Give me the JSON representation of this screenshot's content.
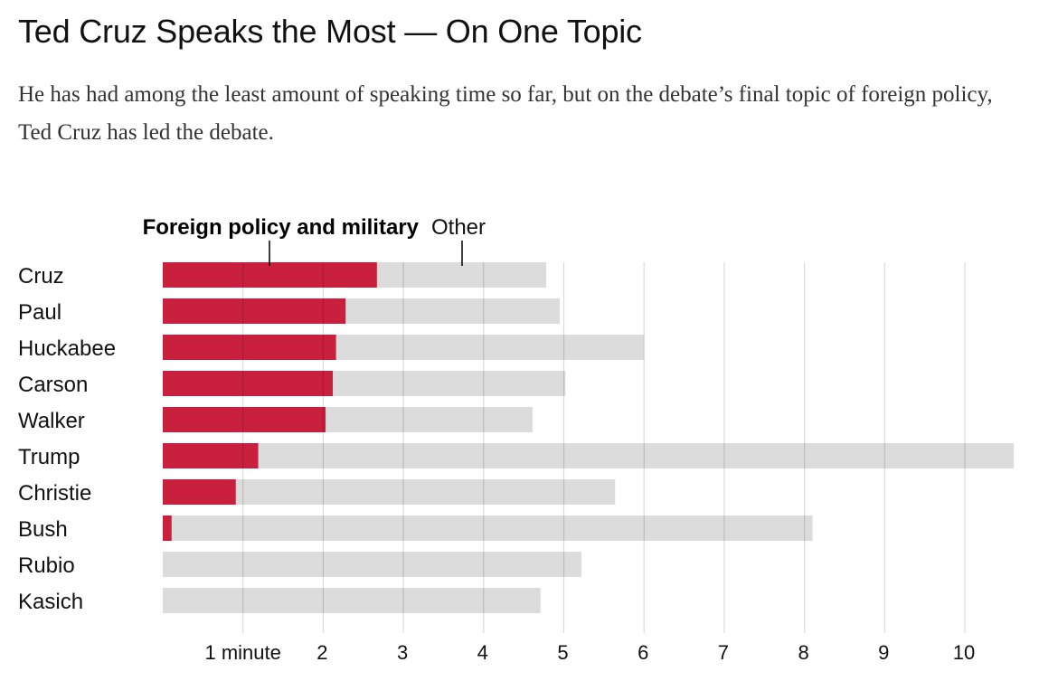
{
  "title": "Ted Cruz Speaks the Most — On One Topic",
  "subtitle": "He has had among the least amount of speaking time so far, but on the debate’s final topic of foreign policy, Ted Cruz has led the debate.",
  "colors": {
    "foreign": "#c8203d",
    "other": "#dcdcdc",
    "grid": "#c8c8c8"
  },
  "chart_data": {
    "type": "bar",
    "orientation": "horizontal",
    "stacked": true,
    "title": "Ted Cruz Speaks the Most — On One Topic",
    "categories": [
      "Cruz",
      "Paul",
      "Huckabee",
      "Carson",
      "Walker",
      "Trump",
      "Christie",
      "Bush",
      "Rubio",
      "Kasich"
    ],
    "series": [
      {
        "name": "Foreign policy and military",
        "color": "#c8203d",
        "values": [
          2.67,
          2.28,
          2.16,
          2.12,
          2.03,
          1.19,
          0.91,
          0.11,
          0,
          0
        ]
      },
      {
        "name": "Other",
        "color": "#dcdcdc",
        "values": [
          2.11,
          2.67,
          3.84,
          2.9,
          2.58,
          9.42,
          4.73,
          7.99,
          5.22,
          4.71
        ]
      }
    ],
    "totals": [
      4.78,
      4.95,
      6.0,
      5.02,
      4.61,
      10.61,
      5.64,
      8.1,
      5.22,
      4.71
    ],
    "xlim": [
      0,
      10.6
    ],
    "xticks": [
      {
        "value": 1,
        "label": "1 minute"
      },
      {
        "value": 2,
        "label": "2"
      },
      {
        "value": 3,
        "label": "3"
      },
      {
        "value": 4,
        "label": "4"
      },
      {
        "value": 5,
        "label": "5"
      },
      {
        "value": 6,
        "label": "6"
      },
      {
        "value": 7,
        "label": "7"
      },
      {
        "value": 8,
        "label": "8"
      },
      {
        "value": 9,
        "label": "9"
      },
      {
        "value": 10,
        "label": "10"
      }
    ],
    "grid": true,
    "legend": {
      "placement": "top",
      "foreign_label": "Foreign policy and military",
      "other_label": "Other"
    }
  }
}
